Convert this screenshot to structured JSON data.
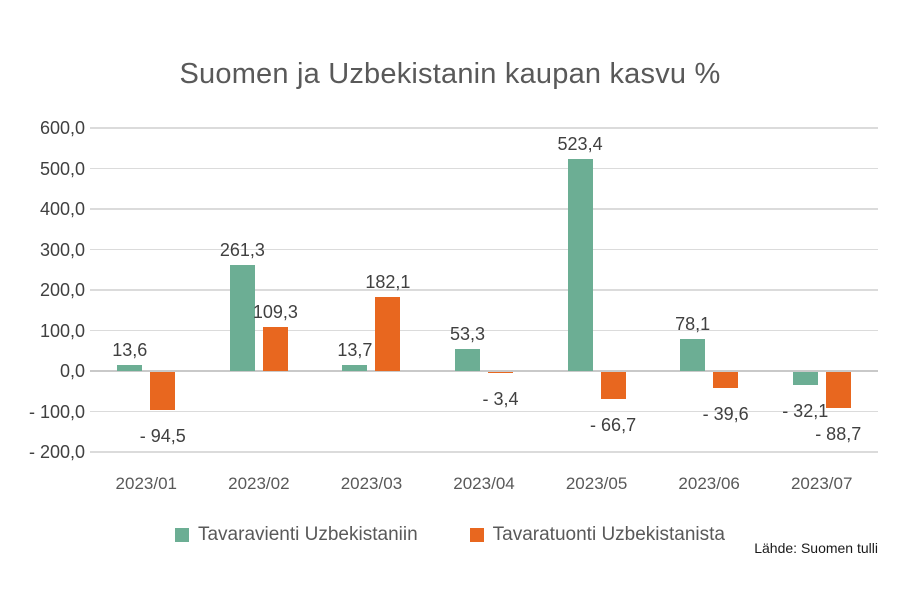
{
  "chart_data": {
    "type": "bar",
    "title": "Suomen ja Uzbekistanin kaupan kasvu %",
    "source_note": "Lähde: Suomen tulli",
    "categories": [
      "2023/01",
      "2023/02",
      "2023/03",
      "2023/04",
      "2023/05",
      "2023/06",
      "2023/07"
    ],
    "series": [
      {
        "name": "Tavaravienti Uzbekistaniin",
        "color": "#6CAE94",
        "values": [
          13.6,
          261.3,
          13.7,
          53.3,
          523.4,
          78.1,
          -32.1
        ],
        "value_labels": [
          "13,6",
          "261,3",
          "13,7",
          "53,3",
          "523,4",
          "78,1",
          "- 32,1"
        ]
      },
      {
        "name": "Tavaratuonti Uzbekistanista",
        "color": "#E8671F",
        "values": [
          -94.5,
          109.3,
          182.1,
          -3.4,
          -66.7,
          -39.6,
          -88.7
        ],
        "value_labels": [
          "- 94,5",
          "109,3",
          "182,1",
          "- 3,4",
          "- 66,7",
          "- 39,6",
          "- 88,7"
        ]
      }
    ],
    "ylim": [
      -200,
      600
    ],
    "ytick_step": 100,
    "ytick_labels": [
      "600,0",
      "500,0",
      "400,0",
      "300,0",
      "200,0",
      "100,0",
      "0,0",
      "- 100,0",
      "- 200,0"
    ],
    "grid": true,
    "legend_position": "bottom",
    "colors": {
      "background": "#ffffff",
      "gridline": "#dbdbdb",
      "zero_line": "#c9c9c9",
      "title_text": "#595959",
      "tick_text": "#404040",
      "category_text": "#595959",
      "legend_text": "#595959",
      "source_text": "#1a1a1a"
    }
  }
}
